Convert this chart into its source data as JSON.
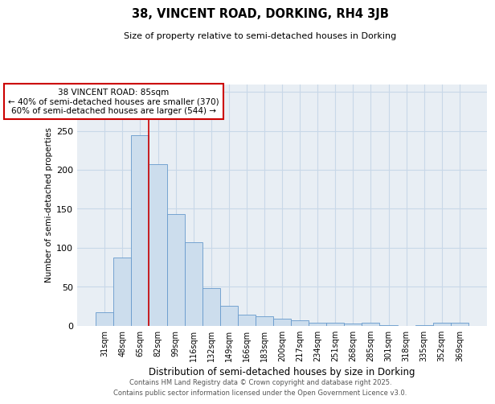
{
  "title": "38, VINCENT ROAD, DORKING, RH4 3JB",
  "subtitle": "Size of property relative to semi-detached houses in Dorking",
  "xlabel": "Distribution of semi-detached houses by size in Dorking",
  "ylabel": "Number of semi-detached properties",
  "categories": [
    "31sqm",
    "48sqm",
    "65sqm",
    "82sqm",
    "99sqm",
    "116sqm",
    "132sqm",
    "149sqm",
    "166sqm",
    "183sqm",
    "200sqm",
    "217sqm",
    "234sqm",
    "251sqm",
    "268sqm",
    "285sqm",
    "301sqm",
    "318sqm",
    "335sqm",
    "352sqm",
    "369sqm"
  ],
  "values": [
    17,
    87,
    244,
    207,
    143,
    107,
    48,
    25,
    14,
    12,
    9,
    7,
    4,
    4,
    3,
    4,
    1,
    0,
    1,
    4,
    4
  ],
  "bar_color": "#ccdded",
  "bar_edge_color": "#6699cc",
  "red_line_color": "#cc0000",
  "red_line_x": 2.5,
  "annotation_title": "38 VINCENT ROAD: 85sqm",
  "annotation_line1": "← 40% of semi-detached houses are smaller (370)",
  "annotation_line2": "60% of semi-detached houses are larger (544) →",
  "annotation_box_edgecolor": "#cc0000",
  "ylim": [
    0,
    310
  ],
  "yticks": [
    0,
    50,
    100,
    150,
    200,
    250,
    300
  ],
  "plot_bg": "#e8eef4",
  "grid_color": "#c8d8e8",
  "footer1": "Contains HM Land Registry data © Crown copyright and database right 2025.",
  "footer2": "Contains public sector information licensed under the Open Government Licence v3.0."
}
